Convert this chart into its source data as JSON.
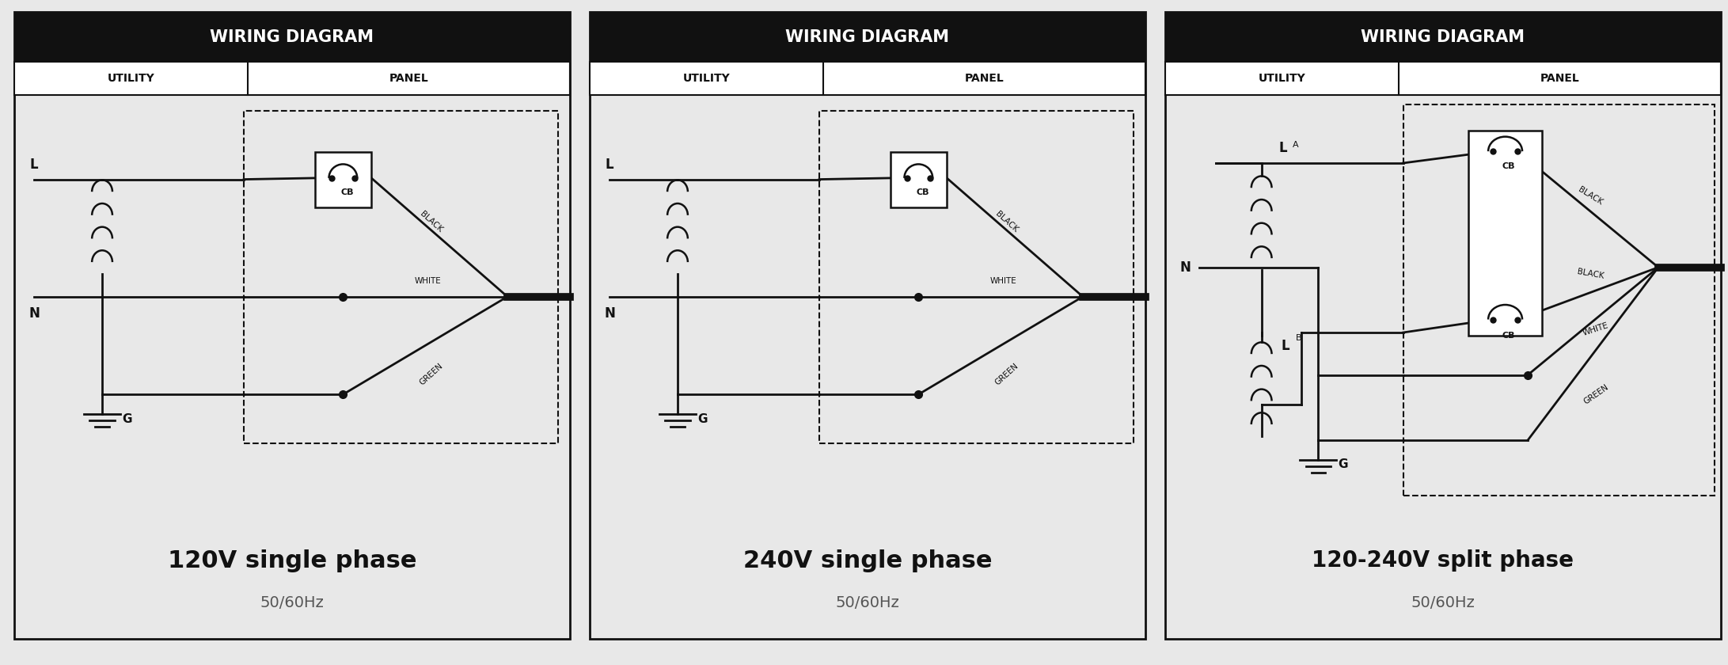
{
  "bg_color": "#e8e8e8",
  "header_bg": "#111111",
  "line_color": "#111111",
  "diagrams": [
    {
      "title": "WIRING DIAGRAM",
      "subtitle1": "120V single phase",
      "subtitle2": "50/60Hz",
      "col_labels": [
        "UTILITY",
        "PANEL"
      ],
      "type": "120V"
    },
    {
      "title": "WIRING DIAGRAM",
      "subtitle1": "240V single phase",
      "subtitle2": "50/60Hz",
      "col_labels": [
        "UTILITY",
        "PANEL"
      ],
      "type": "240V"
    },
    {
      "title": "WIRING DIAGRAM",
      "subtitle1": "120-240V split phase",
      "subtitle2": "50/60Hz",
      "col_labels": [
        "UTILITY",
        "PANEL"
      ],
      "type": "split"
    }
  ]
}
